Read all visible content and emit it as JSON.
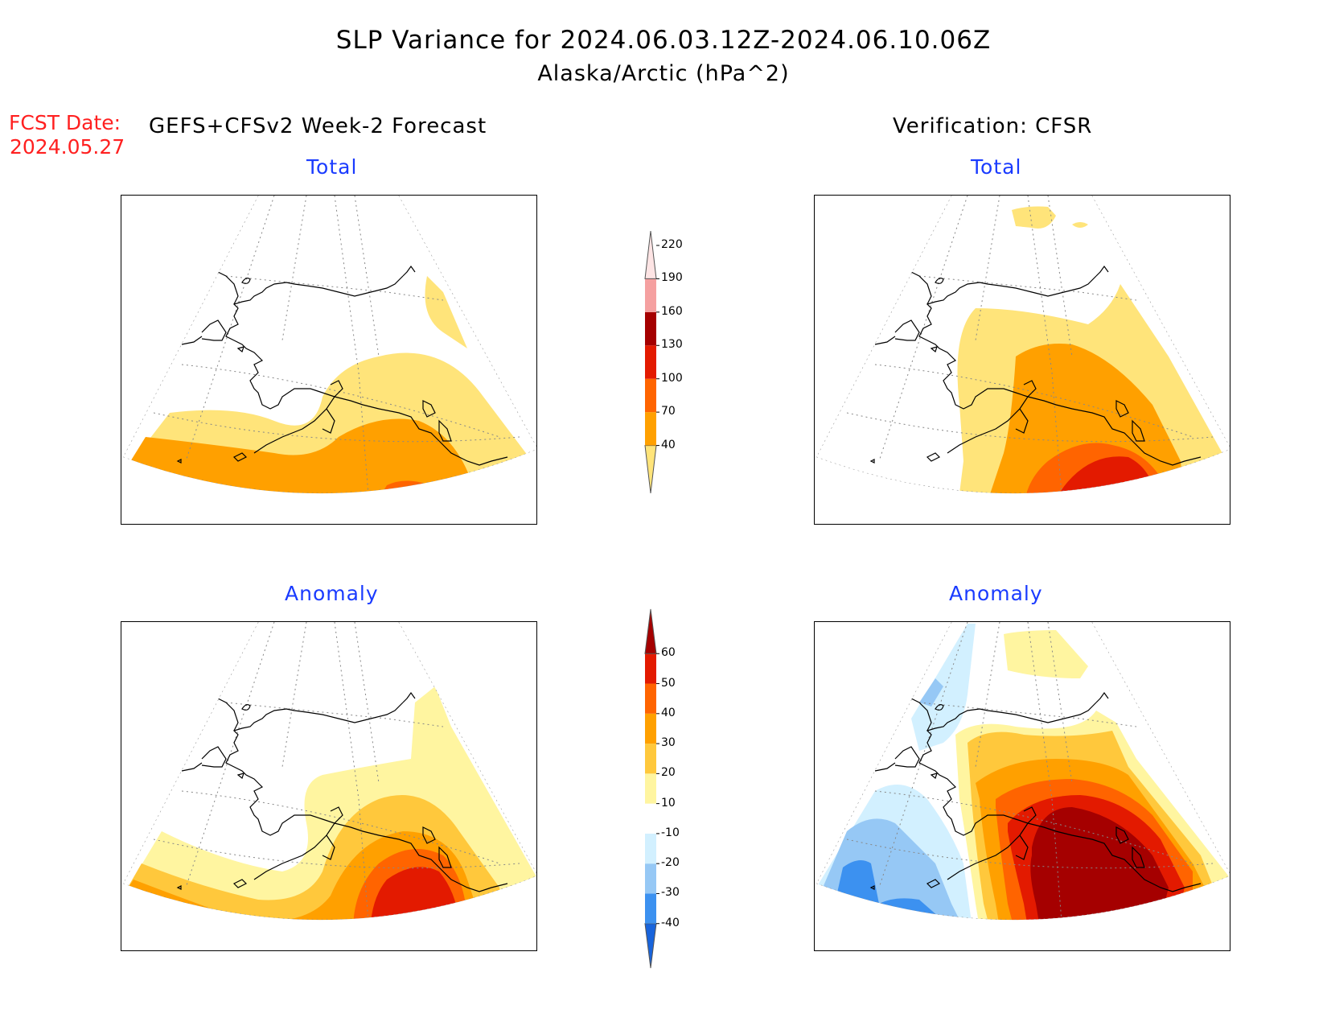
{
  "title": "SLP Variance for 2024.06.03.12Z-2024.06.10.06Z",
  "subtitle": "Alaska/Arctic (hPa^2)",
  "fcst_label": "FCST Date:",
  "fcst_date": "2024.05.27",
  "forecast_header": "GEFS+CFSv2 Week-2 Forecast",
  "verification_header": "Verification: CFSR",
  "panels": [
    {
      "label": "Total",
      "source": "GEFS+CFSv2 Week-2 Forecast"
    },
    {
      "label": "Total",
      "source": "Verification: CFSR"
    },
    {
      "label": "Anomaly",
      "source": "GEFS+CFSv2 Week-2 Forecast"
    },
    {
      "label": "Anomaly",
      "source": "Verification: CFSR"
    }
  ],
  "total_colorbar": {
    "levels": [
      "40",
      "70",
      "100",
      "130",
      "160",
      "190",
      "220"
    ],
    "colors": [
      "#ffe47a",
      "#ffa000",
      "#ff6400",
      "#e31a00",
      "#a50000",
      "#f5a0a0",
      "#fde4e4"
    ]
  },
  "anomaly_colorbar": {
    "levels": [
      "-40",
      "-30",
      "-20",
      "-10",
      "10",
      "20",
      "30",
      "40",
      "50",
      "60"
    ],
    "colors": [
      "#1864dc",
      "#3c91f0",
      "#96c8f5",
      "#d2f0ff",
      "#ffffff",
      "#fff5a0",
      "#ffc83c",
      "#ffa000",
      "#ff6400",
      "#e31a00",
      "#a50000"
    ]
  },
  "palette": {
    "yellow": "#ffe47a",
    "lightyellow": "#fff5a0",
    "gold": "#ffc83c",
    "orange": "#ffa000",
    "darkorange": "#ff6400",
    "red": "#e31a00",
    "darkred": "#a50000",
    "palecyan": "#d2f0ff",
    "lightblue": "#96c8f5",
    "blue": "#3c91f0",
    "darkblue": "#1864dc"
  }
}
